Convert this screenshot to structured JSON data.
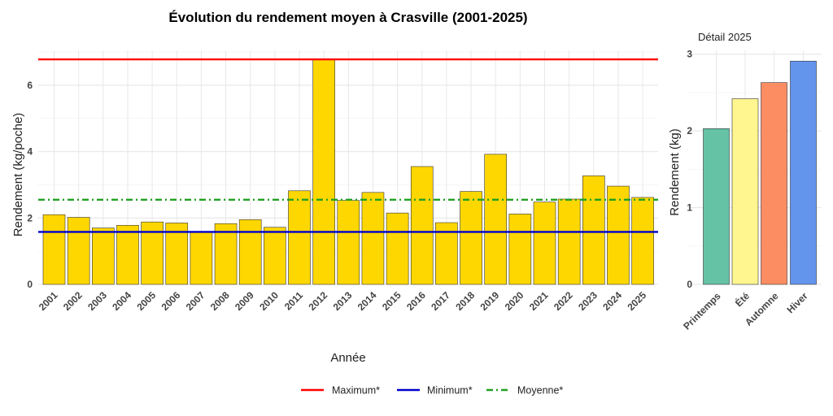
{
  "chart_data": [
    {
      "type": "bar",
      "title": "Évolution du rendement moyen à Crasville (2001-2025)",
      "xlabel": "Année",
      "ylabel": "Rendement (kg/poche)",
      "ylim": [
        0,
        7.05
      ],
      "yticks": [
        0,
        2,
        4,
        6
      ],
      "grid": true,
      "bar_color": "#FFD700",
      "categories": [
        "2001",
        "2002",
        "2003",
        "2004",
        "2005",
        "2006",
        "2007",
        "2008",
        "2009",
        "2010",
        "2011",
        "2012",
        "2013",
        "2014",
        "2015",
        "2016",
        "2017",
        "2018",
        "2019",
        "2020",
        "2021",
        "2022",
        "2023",
        "2024",
        "2025"
      ],
      "values": [
        2.1,
        2.02,
        1.7,
        1.78,
        1.88,
        1.85,
        1.58,
        1.83,
        1.95,
        1.72,
        2.82,
        6.78,
        2.53,
        2.77,
        2.15,
        3.55,
        1.86,
        2.8,
        3.92,
        2.12,
        2.48,
        2.57,
        3.27,
        2.96,
        2.62
      ],
      "reference_lines": [
        {
          "name": "Maximum*",
          "value": 6.78,
          "color": "#FF0000",
          "style": "solid"
        },
        {
          "name": "Minimum*",
          "value": 1.58,
          "color": "#0000CC",
          "style": "solid"
        },
        {
          "name": "Moyenne*",
          "value": 2.55,
          "color": "#22A022",
          "style": "dashdot"
        }
      ],
      "legend_position": "bottom"
    },
    {
      "type": "bar",
      "title": "Détail 2025",
      "xlabel": "",
      "ylabel": "Rendement (kg)",
      "ylim": [
        0,
        3.05
      ],
      "yticks": [
        0,
        1,
        2,
        3
      ],
      "grid": true,
      "categories": [
        "Printemps",
        "Été",
        "Automne",
        "Hiver"
      ],
      "values": [
        2.03,
        2.42,
        2.63,
        2.91
      ],
      "colors": [
        "#66C2A5",
        "#FFF68F",
        "#FC8D62",
        "#6495ED"
      ]
    }
  ]
}
